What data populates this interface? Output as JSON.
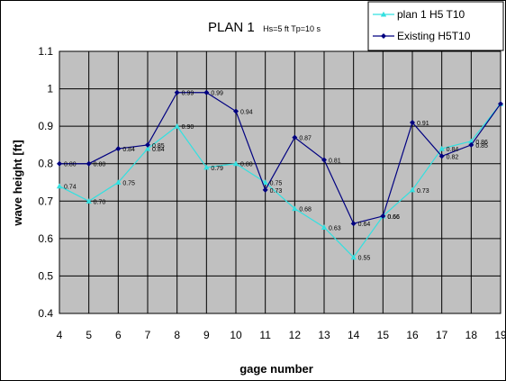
{
  "chart_data": {
    "type": "line",
    "title": "PLAN 1",
    "subtitle": "Hs=5 ft Tp=10 s",
    "xlabel": "gage number",
    "ylabel": "wave height [ft]",
    "x": [
      4,
      5,
      6,
      7,
      8,
      9,
      10,
      11,
      12,
      13,
      14,
      15,
      16,
      17,
      18,
      19
    ],
    "x_ticks": [
      "4",
      "5",
      "6",
      "7",
      "8",
      "9",
      "10",
      "11",
      "12",
      "13",
      "14",
      "15",
      "16",
      "17",
      "18",
      "19"
    ],
    "y_ticks": [
      "0.4",
      "0.5",
      "0.6",
      "0.7",
      "0.8",
      "0.9",
      "1",
      "1.1"
    ],
    "xlim": [
      4,
      19
    ],
    "ylim": [
      0.4,
      1.1
    ],
    "grid": true,
    "legend_position": "top-right",
    "series": [
      {
        "name": "plan 1 H5 T10",
        "color": "#33e0e0",
        "marker": "triangle",
        "values": [
          0.74,
          0.7,
          0.75,
          0.84,
          0.9,
          0.79,
          0.8,
          0.75,
          0.68,
          0.63,
          0.55,
          0.66,
          0.73,
          0.84,
          0.86,
          0.96
        ],
        "labels": [
          "0.74",
          "0.70",
          "0.75",
          "0.84",
          "0.90",
          "0.79",
          "0.80",
          "0.75",
          "0.68",
          "0.63",
          "0.55",
          "0.66",
          "0.73",
          "0.84",
          "0.86",
          "0.96"
        ]
      },
      {
        "name": "Existing H5T10",
        "color": "#000080",
        "marker": "diamond",
        "values": [
          0.8,
          0.8,
          0.84,
          0.85,
          0.99,
          0.99,
          0.94,
          0.73,
          0.87,
          0.81,
          0.64,
          0.66,
          0.91,
          0.82,
          0.85,
          0.96
        ],
        "labels": [
          "0.80",
          "0.80",
          "0.84",
          "0.85",
          "0.99",
          "0.99",
          "0.94",
          "0.73",
          "0.87",
          "0.81",
          "0.64",
          "0.66",
          "0.91",
          "0.82",
          "0.85",
          "0.96"
        ]
      }
    ]
  },
  "colors": {
    "plot_background": "#c0c0c0",
    "gridline": "#000000"
  }
}
